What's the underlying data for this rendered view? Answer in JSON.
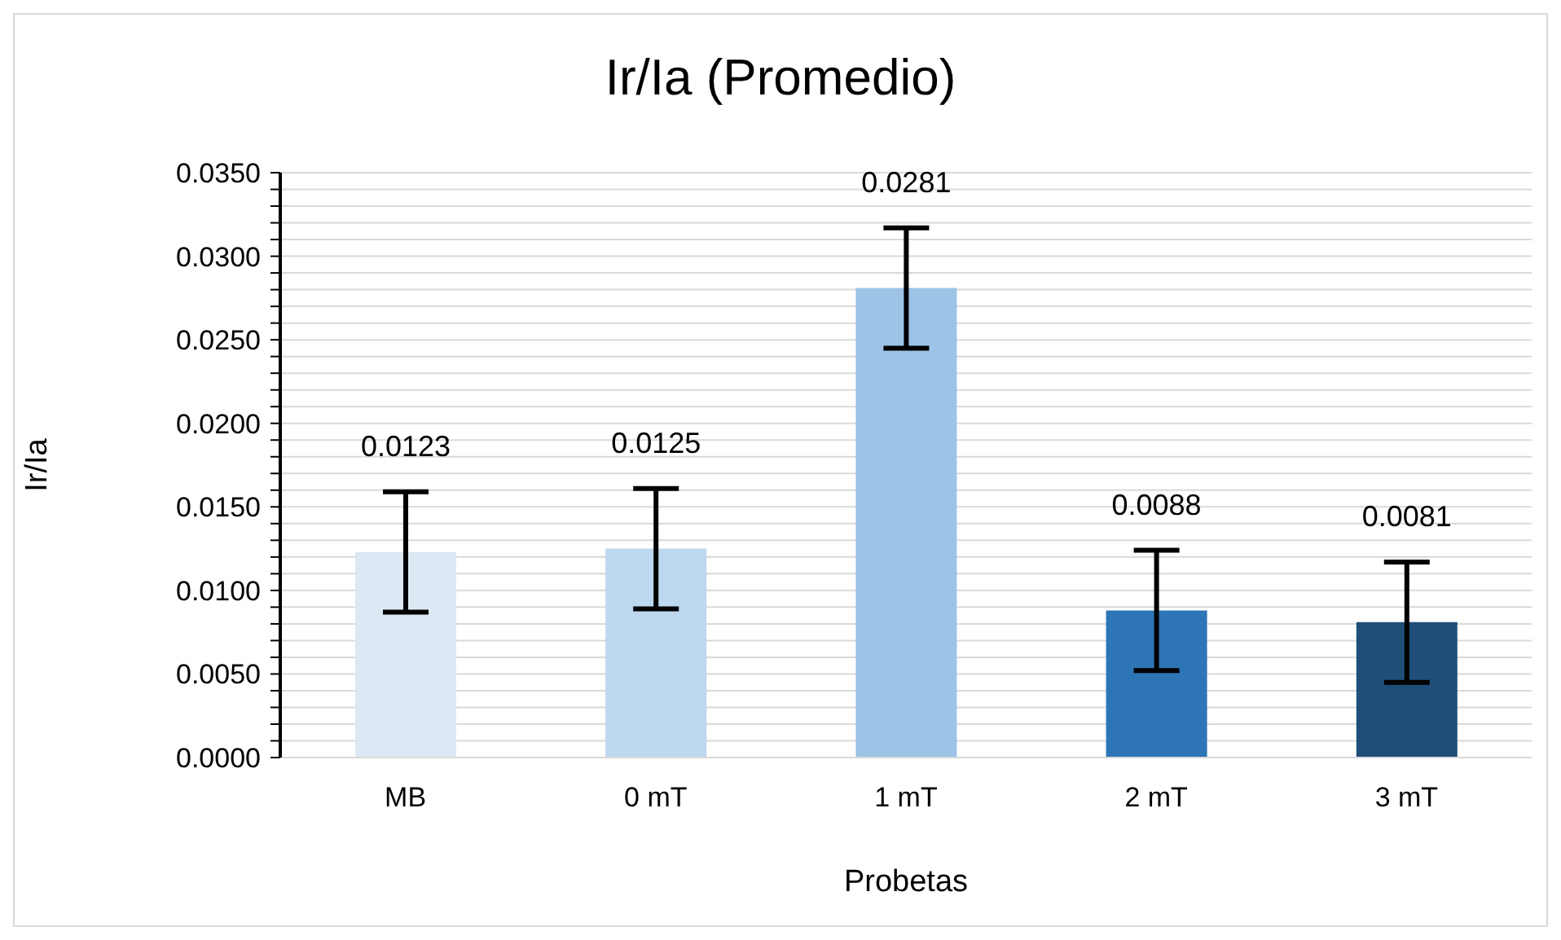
{
  "chart_data": {
    "type": "bar",
    "title": "Ir/Ia (Promedio)",
    "xlabel": "Probetas",
    "ylabel": "Ir/Ia",
    "categories": [
      "MB",
      "0 mT",
      "1 mT",
      "2 mT",
      "3 mT"
    ],
    "values": [
      0.0123,
      0.0125,
      0.0281,
      0.0088,
      0.0081
    ],
    "colors": [
      "#dde8f5",
      "#bdd7ee",
      "#9dc3e6",
      "#2e75b6",
      "#1f4e79"
    ],
    "errors": [
      0.0036,
      0.0036,
      0.0036,
      0.0036,
      0.0036
    ],
    "data_labels": true,
    "ylim": [
      0,
      0.035
    ],
    "yticks": [
      {
        "value": 0,
        "label": "0.0000"
      },
      {
        "value": 0.001,
        "label": null
      },
      {
        "value": 0.002,
        "label": null
      },
      {
        "value": 0.003,
        "label": null
      },
      {
        "value": 0.004,
        "label": null
      },
      {
        "value": 0.005,
        "label": "0.0050"
      },
      {
        "value": 0.006,
        "label": null
      },
      {
        "value": 0.007,
        "label": null
      },
      {
        "value": 0.008,
        "label": null
      },
      {
        "value": 0.009,
        "label": null
      },
      {
        "value": 0.01,
        "label": "0.0100"
      },
      {
        "value": 0.011,
        "label": null
      },
      {
        "value": 0.012,
        "label": null
      },
      {
        "value": 0.013,
        "label": null
      },
      {
        "value": 0.014,
        "label": null
      },
      {
        "value": 0.015,
        "label": "0.0150"
      },
      {
        "value": 0.016,
        "label": null
      },
      {
        "value": 0.017,
        "label": null
      },
      {
        "value": 0.018,
        "label": null
      },
      {
        "value": 0.019,
        "label": null
      },
      {
        "value": 0.02,
        "label": "0.0200"
      },
      {
        "value": 0.021,
        "label": null
      },
      {
        "value": 0.022,
        "label": null
      },
      {
        "value": 0.023,
        "label": null
      },
      {
        "value": 0.024,
        "label": null
      },
      {
        "value": 0.025,
        "label": "0.0250"
      },
      {
        "value": 0.026,
        "label": null
      },
      {
        "value": 0.027,
        "label": null
      },
      {
        "value": 0.028,
        "label": null
      },
      {
        "value": 0.029,
        "label": null
      },
      {
        "value": 0.03,
        "label": "0.0300"
      },
      {
        "value": 0.031,
        "label": null
      },
      {
        "value": 0.032,
        "label": null
      },
      {
        "value": 0.033,
        "label": null
      },
      {
        "value": 0.034,
        "label": null
      },
      {
        "value": 0.035,
        "label": "0.0350"
      }
    ],
    "grid": "y",
    "legend": false
  }
}
